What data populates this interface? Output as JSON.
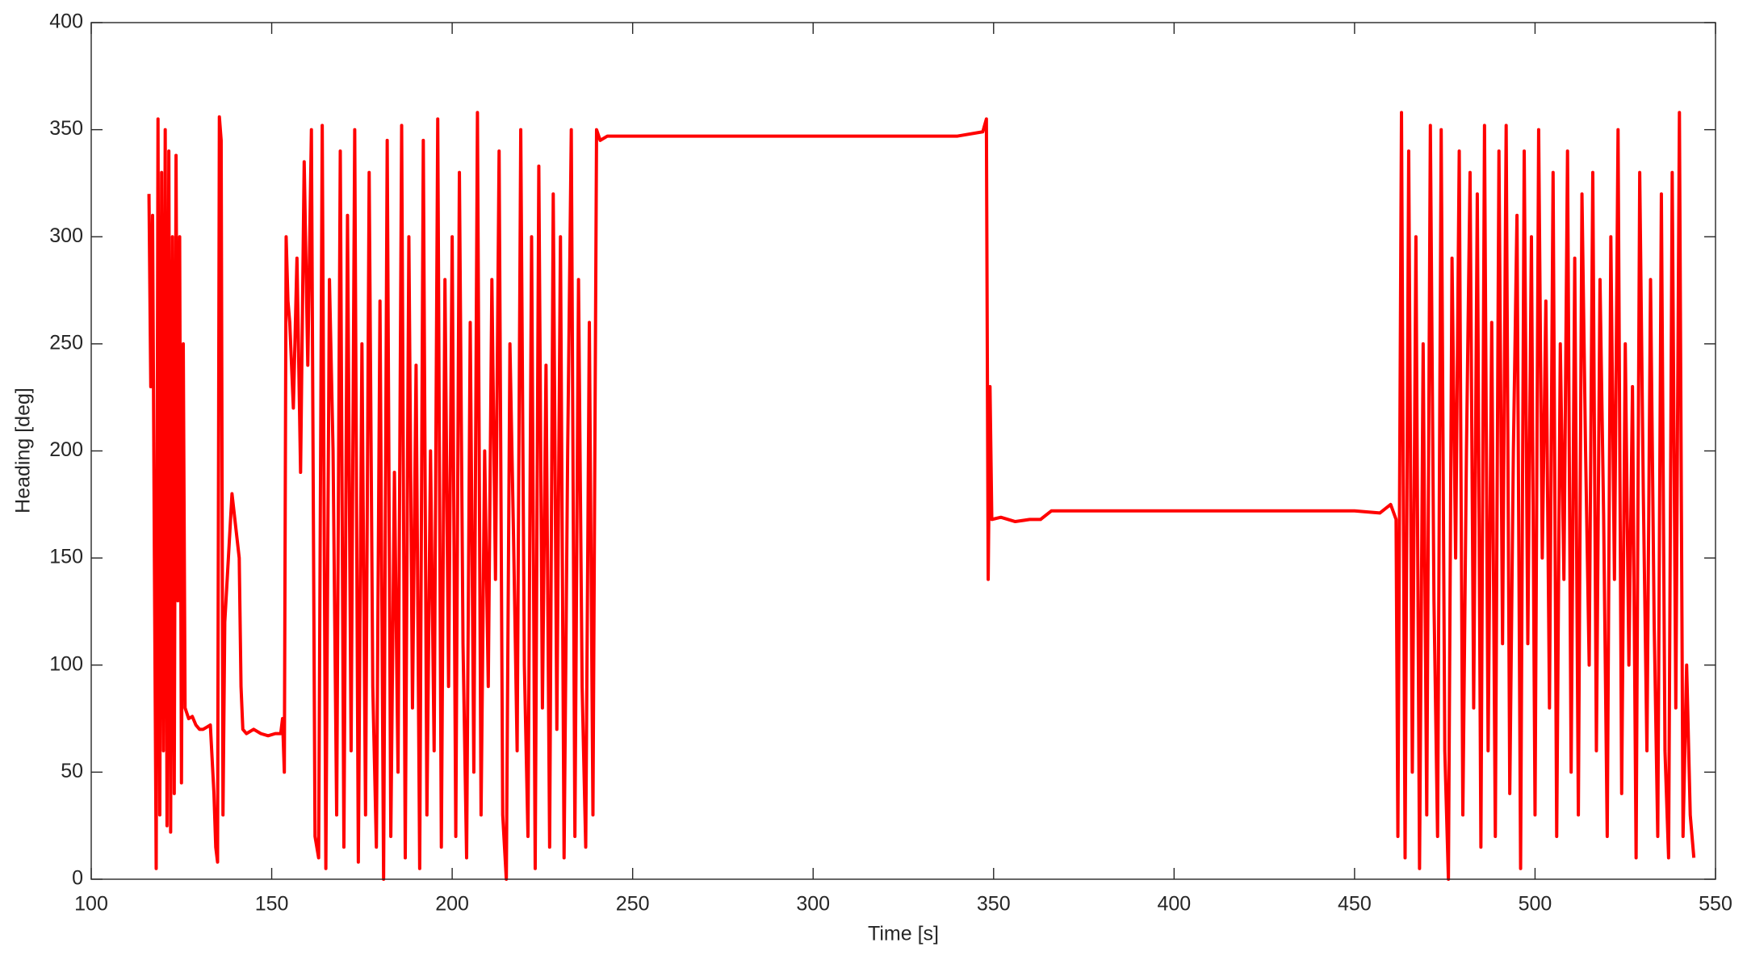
{
  "chart_data": {
    "type": "line",
    "x_label": "Time [s]",
    "y_label": "Heading [deg]",
    "x": [
      116,
      116.5,
      117,
      117.5,
      118,
      118.5,
      119,
      119.5,
      120,
      120.5,
      121,
      121.5,
      122,
      122.5,
      123,
      123.5,
      124,
      124.5,
      125,
      125.5,
      126,
      127,
      128,
      129,
      130,
      131,
      132,
      133,
      134,
      134.5,
      135,
      135.5,
      136,
      136.5,
      137,
      138,
      139,
      140,
      141,
      141.5,
      142,
      143,
      145,
      147,
      149,
      151,
      152.5,
      153,
      153.5,
      154,
      154.5,
      155,
      156,
      157,
      158,
      159,
      160,
      161,
      162,
      163,
      164,
      165,
      166,
      167,
      168,
      169,
      170,
      171,
      172,
      173,
      174,
      175,
      176,
      177,
      178,
      179,
      180,
      181,
      182,
      183,
      184,
      185,
      186,
      187,
      188,
      189,
      190,
      191,
      192,
      193,
      194,
      195,
      196,
      197,
      198,
      199,
      200,
      201,
      202,
      203,
      204,
      205,
      206,
      207,
      208,
      209,
      210,
      211,
      212,
      213,
      214,
      215,
      216,
      217,
      218,
      219,
      220,
      221,
      222,
      223,
      224,
      225,
      226,
      227,
      228,
      229,
      230,
      231,
      232,
      233,
      234,
      235,
      236,
      237,
      238,
      239,
      240,
      241,
      243,
      250,
      260,
      270,
      280,
      290,
      300,
      310,
      320,
      330,
      340,
      347,
      348,
      348.5,
      349,
      349.5,
      352,
      356,
      360,
      363,
      366,
      375,
      390,
      410,
      430,
      450,
      457,
      460,
      461.5,
      462,
      463,
      464,
      465,
      466,
      467,
      468,
      469,
      470,
      471,
      472,
      473,
      474,
      475,
      476,
      477,
      478,
      479,
      480,
      481,
      482,
      483,
      484,
      485,
      486,
      487,
      488,
      489,
      490,
      491,
      492,
      493,
      494,
      495,
      496,
      497,
      498,
      499,
      500,
      501,
      502,
      503,
      504,
      505,
      506,
      507,
      508,
      509,
      510,
      511,
      512,
      513,
      514,
      515,
      516,
      517,
      518,
      519,
      520,
      521,
      522,
      523,
      524,
      525,
      526,
      527,
      528,
      529,
      530,
      531,
      532,
      533,
      534,
      535,
      536,
      537,
      538,
      539,
      540,
      541,
      542,
      543,
      544
    ],
    "values": [
      320,
      230,
      310,
      150,
      5,
      355,
      30,
      330,
      60,
      350,
      25,
      340,
      22,
      300,
      40,
      338,
      130,
      300,
      45,
      250,
      80,
      75,
      76,
      72,
      70,
      70,
      71,
      72,
      40,
      15,
      8,
      356,
      345,
      30,
      120,
      150,
      180,
      165,
      150,
      90,
      70,
      68,
      70,
      68,
      67,
      68,
      68,
      75,
      50,
      300,
      270,
      260,
      220,
      290,
      190,
      335,
      240,
      350,
      20,
      10,
      352,
      5,
      280,
      200,
      30,
      340,
      15,
      310,
      60,
      350,
      8,
      250,
      30,
      330,
      90,
      15,
      270,
      0,
      345,
      20,
      190,
      50,
      352,
      10,
      300,
      80,
      240,
      5,
      345,
      30,
      200,
      60,
      355,
      15,
      280,
      90,
      300,
      20,
      330,
      110,
      10,
      260,
      50,
      358,
      30,
      200,
      90,
      280,
      140,
      340,
      30,
      0,
      250,
      160,
      60,
      350,
      100,
      20,
      300,
      5,
      333,
      80,
      240,
      15,
      320,
      70,
      300,
      10,
      200,
      350,
      20,
      280,
      90,
      15,
      260,
      30,
      350,
      345,
      347,
      347,
      347,
      347,
      347,
      347,
      347,
      347,
      347,
      347,
      347,
      349,
      355,
      140,
      230,
      168,
      169,
      167,
      168,
      168,
      172,
      172,
      172,
      172,
      172,
      172,
      171,
      175,
      168,
      20,
      358,
      10,
      340,
      50,
      300,
      5,
      250,
      30,
      352,
      130,
      20,
      350,
      60,
      0,
      290,
      150,
      340,
      30,
      200,
      330,
      80,
      320,
      15,
      352,
      60,
      260,
      20,
      340,
      110,
      352,
      40,
      200,
      310,
      5,
      340,
      110,
      300,
      30,
      350,
      150,
      270,
      80,
      330,
      20,
      250,
      140,
      340,
      50,
      290,
      30,
      320,
      200,
      100,
      330,
      60,
      280,
      170,
      20,
      300,
      140,
      350,
      40,
      250,
      100,
      230,
      10,
      330,
      180,
      60,
      280,
      120,
      20,
      320,
      60,
      10,
      330,
      80,
      358,
      20,
      100,
      30,
      10
    ],
    "color": "#ff0000",
    "xlim": [
      100,
      550
    ],
    "xticks": [
      100,
      150,
      200,
      250,
      300,
      350,
      400,
      450,
      500,
      550
    ],
    "ylim": [
      0,
      400
    ],
    "yticks": [
      0,
      50,
      100,
      150,
      200,
      250,
      300,
      350,
      400
    ],
    "grid": false
  }
}
